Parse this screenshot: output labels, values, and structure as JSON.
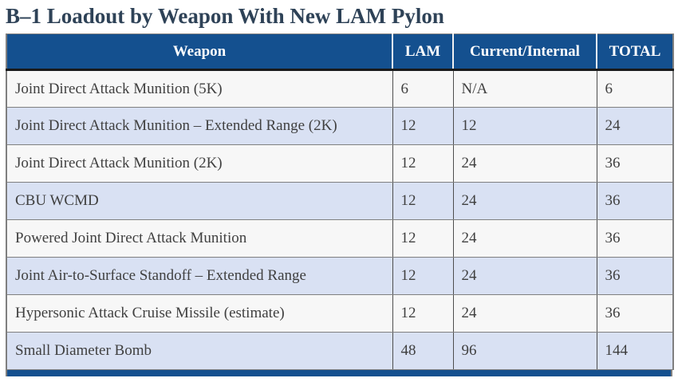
{
  "title": "B–1 Loadout by Weapon With New LAM Pylon",
  "colors": {
    "header_bg": "#14508F",
    "header_text": "#FFFFFF",
    "row_light": "#F7F7F7",
    "row_alt_blue": "#D9E1F3",
    "body_text": "#404040",
    "title_text": "#2E4257",
    "outer_border": "#7F7F7F",
    "header_bottom_border": "#1A1A1A",
    "footer_bar": "#14508F"
  },
  "table": {
    "columns": [
      "Weapon",
      "LAM",
      "Current/Internal",
      "TOTAL"
    ],
    "rows": [
      {
        "weapon": "Joint Direct Attack Munition (5K)",
        "lam": "6",
        "current_internal": "N/A",
        "total": "6"
      },
      {
        "weapon": "Joint Direct Attack Munition – Extended Range (2K)",
        "lam": "12",
        "current_internal": "12",
        "total": "24"
      },
      {
        "weapon": "Joint Direct Attack Munition (2K)",
        "lam": "12",
        "current_internal": "24",
        "total": "36"
      },
      {
        "weapon": "CBU WCMD",
        "lam": "12",
        "current_internal": "24",
        "total": "36"
      },
      {
        "weapon": "Powered Joint Direct Attack Munition",
        "lam": "12",
        "current_internal": "24",
        "total": "36"
      },
      {
        "weapon": "Joint Air-to-Surface Standoff – Extended Range",
        "lam": "12",
        "current_internal": "24",
        "total": "36"
      },
      {
        "weapon": "Hypersonic Attack Cruise Missile (estimate)",
        "lam": "12",
        "current_internal": "24",
        "total": "36"
      },
      {
        "weapon": "Small Diameter Bomb",
        "lam": "48",
        "current_internal": "96",
        "total": "144"
      }
    ]
  }
}
